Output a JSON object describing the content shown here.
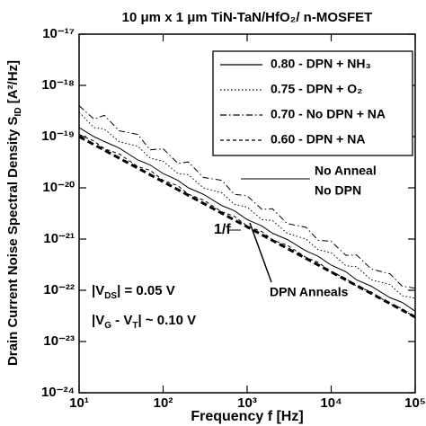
{
  "chart_data": {
    "type": "line",
    "title": "10 μm x 1 μm TiN-TaN/HfO₂/ n-MOSFET",
    "xlabel": "Frequency f [Hz]",
    "ylabel": {
      "main": "Drain Current Noise Spectral Density S",
      "sub": "ID",
      "unit": " [A²/Hz]"
    },
    "log_x": true,
    "log_y": true,
    "xlim": [
      10,
      100000
    ],
    "ylim": [
      1e-24,
      1e-17
    ],
    "xticks": [
      {
        "value": 10,
        "label": "10¹"
      },
      {
        "value": 100,
        "label": "10²"
      },
      {
        "value": 1000,
        "label": "10³"
      },
      {
        "value": 10000,
        "label": "10⁴"
      },
      {
        "value": 100000,
        "label": "10⁵"
      }
    ],
    "yticks": [
      {
        "value": 1e-24,
        "label": "10⁻²⁴"
      },
      {
        "value": 1e-23,
        "label": "10⁻²³"
      },
      {
        "value": 1e-22,
        "label": "10⁻²²"
      },
      {
        "value": 1e-21,
        "label": "10⁻²¹"
      },
      {
        "value": 1e-20,
        "label": "10⁻²⁰"
      },
      {
        "value": 1e-19,
        "label": "10⁻¹⁹"
      },
      {
        "value": 1e-18,
        "label": "10⁻¹⁸"
      },
      {
        "value": 1e-17,
        "label": "10⁻¹⁷"
      }
    ],
    "legend_position": "upper right",
    "x": [
      10,
      15,
      20,
      30,
      50,
      70,
      100,
      150,
      200,
      300,
      500,
      700,
      1000,
      1500,
      2000,
      3000,
      5000,
      7000,
      10000,
      15000,
      20000,
      30000,
      50000,
      70000,
      100000
    ],
    "series": [
      {
        "name": "0.80 - DPN + NH₃",
        "color": "#000000",
        "line_style": "solid",
        "values": [
          1.5e-19,
          1e-19,
          8e-20,
          6e-20,
          3.5e-20,
          2.8e-20,
          1.9e-20,
          1.4e-20,
          1e-20,
          7.5e-21,
          4.5e-21,
          3.6e-21,
          2.4e-21,
          1.8e-21,
          1.3e-21,
          9.8e-22,
          5.9e-22,
          4.6e-22,
          3.1e-22,
          2.3e-22,
          1.6e-22,
          1.2e-22,
          7.2e-23,
          5.8e-23,
          3.9e-23
        ]
      },
      {
        "name": "0.75 - DPN + O₂",
        "color": "#000000",
        "line_style": "dotted",
        "values": [
          3e-19,
          1.5e-19,
          1.4e-19,
          8e-20,
          6.5e-20,
          3.8e-20,
          3.3e-20,
          1.9e-20,
          1.8e-20,
          1e-20,
          8e-21,
          4.8e-21,
          4.2e-21,
          2.4e-21,
          2.3e-21,
          1.3e-21,
          1e-21,
          6.2e-22,
          5.4e-22,
          3e-22,
          2.9e-22,
          1.6e-22,
          1.3e-22,
          7.8e-23,
          7e-23
        ]
      },
      {
        "name": "0.70 - No DPN + NA",
        "color": "#000000",
        "line_style": "dashdot",
        "values": [
          4e-19,
          2.2e-19,
          2.6e-19,
          1.3e-19,
          1.1e-19,
          5.5e-20,
          5.8e-20,
          3e-20,
          3.2e-20,
          1.6e-20,
          1.4e-20,
          7.5e-21,
          7e-21,
          3.8e-21,
          3.9e-21,
          2e-21,
          1.7e-21,
          9.5e-22,
          9e-22,
          4.8e-22,
          4.9e-22,
          2.6e-22,
          2.1e-22,
          1.2e-22,
          1.1e-22
        ]
      },
      {
        "name": "0.60 - DPN + NA",
        "color": "#000000",
        "line_style": "dashed",
        "values": [
          1.1e-19,
          8.2e-20,
          5.8e-20,
          4.6e-20,
          2.6e-20,
          2.2e-20,
          1.4e-20,
          1.1e-20,
          7.5e-21,
          5.8e-21,
          3.4e-21,
          2.8e-21,
          1.8e-21,
          1.4e-21,
          9.6e-22,
          7.6e-22,
          4.4e-22,
          3.5e-22,
          2.3e-22,
          1.7e-22,
          1.2e-22,
          9.3e-23,
          5.4e-23,
          4.4e-23,
          2.9e-23
        ]
      }
    ],
    "reference_line": {
      "label": "1/f",
      "x": [
        10,
        100000
      ],
      "values": [
        1e-19,
        3e-23
      ]
    },
    "annotations": {
      "no_anneal": "No Anneal",
      "no_dpn": "No DPN",
      "dpn_anneals": "DPN Anneals",
      "vds": [
        "|V",
        "DS",
        "| = 0.05 V"
      ],
      "vg": [
        "|V",
        "G",
        " - V",
        "T",
        "| ~ 0.10 V"
      ]
    }
  }
}
